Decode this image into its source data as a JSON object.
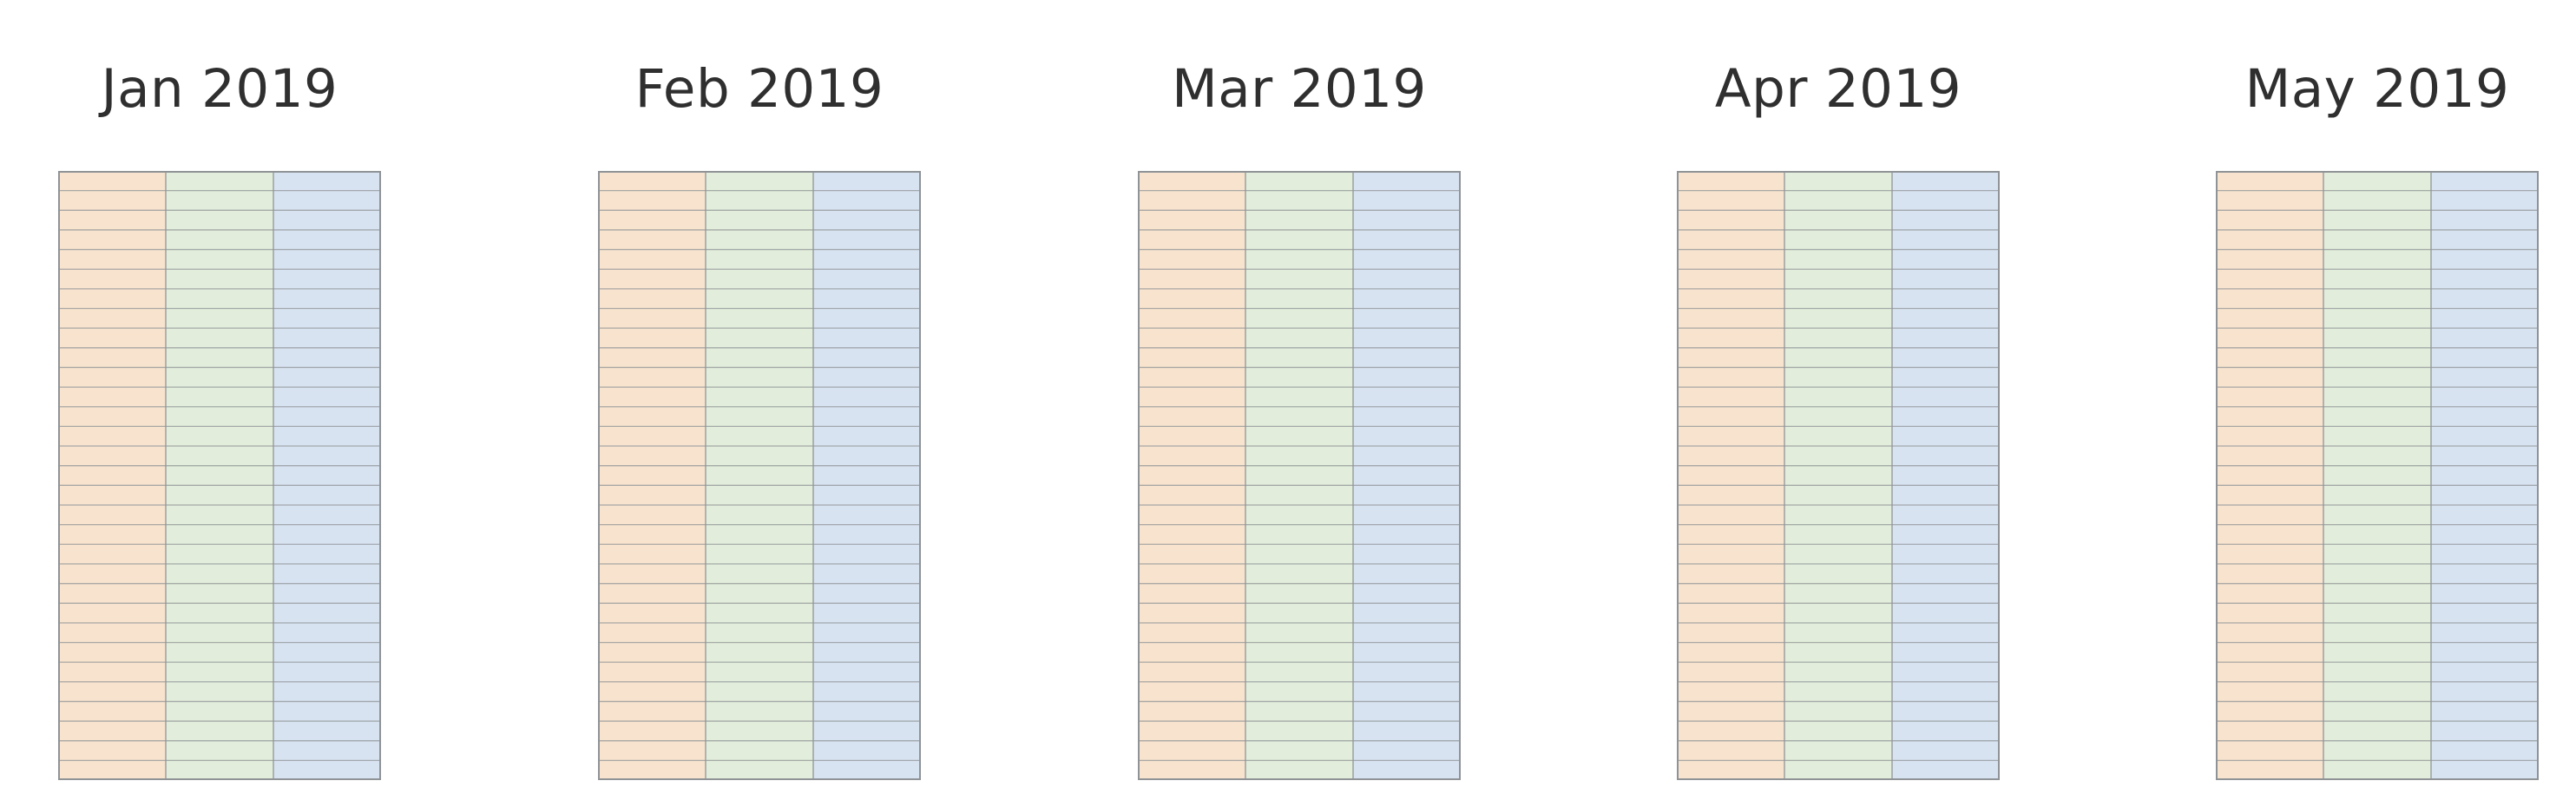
{
  "months": [
    {
      "title": "Jan 2019"
    },
    {
      "title": "Feb 2019"
    },
    {
      "title": "Mar 2019"
    },
    {
      "title": "Apr 2019"
    },
    {
      "title": "May 2019"
    }
  ],
  "grid": {
    "rows": 31,
    "columns": 3,
    "column_colors": [
      "#f7e3ce",
      "#e2eddb",
      "#d8e3f1"
    ],
    "line_color": "#8f9396"
  }
}
